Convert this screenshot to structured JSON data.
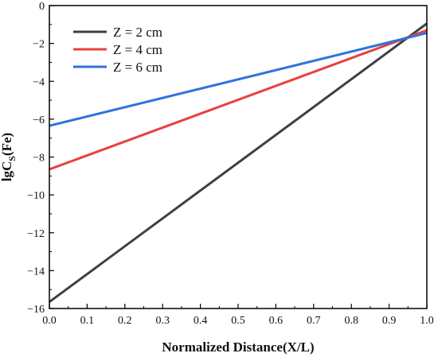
{
  "chart_data": {
    "type": "line",
    "title": "",
    "xlabel": "Normalized Distance(X/L)",
    "ylabel": {
      "prefix": "lgC",
      "subscript": "S",
      "suffix": "(Fe)"
    },
    "xlim": [
      0.0,
      1.0
    ],
    "ylim": [
      -16,
      0
    ],
    "x_ticks": [
      "0.0",
      "0.1",
      "0.2",
      "0.3",
      "0.4",
      "0.5",
      "0.6",
      "0.7",
      "0.8",
      "0.9",
      "1.0"
    ],
    "y_ticks": [
      "0",
      "−2",
      "−4",
      "−6",
      "−8",
      "−10",
      "−12",
      "−14",
      "−16"
    ],
    "grid": false,
    "legend_position": "top-left",
    "series": [
      {
        "name": "Z = 2 cm",
        "color": "#404040",
        "x": [
          0.0,
          1.0
        ],
        "y": [
          -15.65,
          -0.95
        ]
      },
      {
        "name": "Z = 4 cm",
        "color": "#e8413f",
        "x": [
          0.0,
          1.0
        ],
        "y": [
          -8.65,
          -1.3
        ]
      },
      {
        "name": "Z = 6 cm",
        "color": "#2f72dc",
        "x": [
          0.0,
          1.0
        ],
        "y": [
          -6.35,
          -1.45
        ]
      }
    ]
  }
}
